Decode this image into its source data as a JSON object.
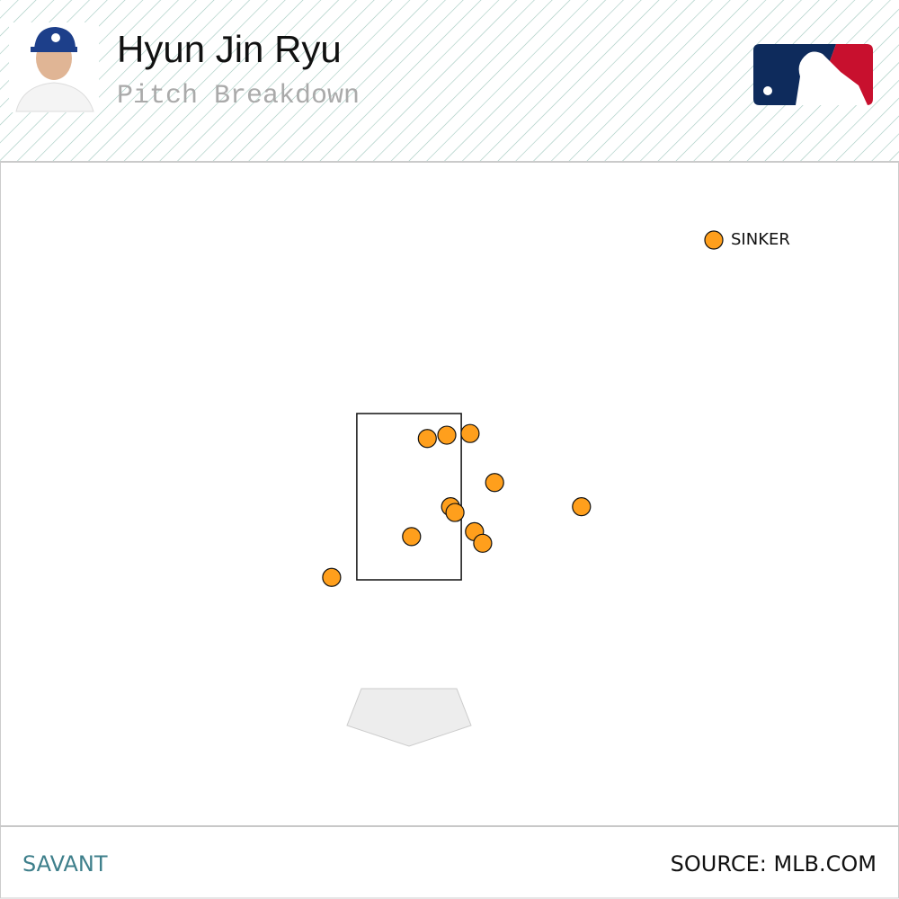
{
  "header": {
    "title": "Hyun Jin Ryu",
    "subtitle": "Pitch Breakdown"
  },
  "chart_data": {
    "type": "scatter",
    "xlim": [
      -5,
      5
    ],
    "ylim": [
      -0.5,
      5.5
    ],
    "strike_zone": {
      "x": [
        -0.83,
        0.83
      ],
      "z": [
        1.5,
        3.5
      ]
    },
    "legend": "top-right",
    "series": [
      {
        "name": "SINKER",
        "color": "#ff9f1c",
        "x": [
          0.29,
          0.6,
          0.97,
          1.36,
          0.66,
          0.73,
          2.74,
          0.04,
          1.04,
          1.17,
          -1.23
        ],
        "values": [
          3.2,
          3.24,
          3.26,
          2.67,
          2.38,
          2.31,
          2.38,
          2.02,
          2.08,
          1.94,
          1.53
        ]
      }
    ]
  },
  "footer": {
    "left": "SAVANT",
    "right": "SOURCE: MLB.COM"
  }
}
